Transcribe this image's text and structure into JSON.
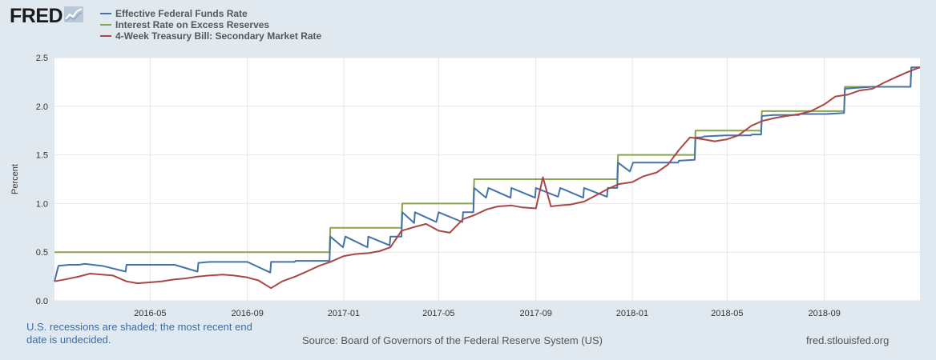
{
  "header": {
    "logo_text": "FRED",
    "logo_icon": "line-chart-icon"
  },
  "legend": [
    {
      "label": "Effective Federal Funds Rate",
      "color": "#4572a7"
    },
    {
      "label": "Interest Rate on Excess Reserves",
      "color": "#89a54e"
    },
    {
      "label": "4-Week Treasury Bill: Secondary Market Rate",
      "color": "#aa4643"
    }
  ],
  "footer": {
    "note": "U.S. recessions are shaded; the most recent end date is undecided.",
    "source": "Source: Board of Governors of the Federal Reserve System (US)",
    "url": "fred.stlouisfed.org"
  },
  "chart_data": {
    "type": "line",
    "xlabel": "",
    "ylabel": "Percent",
    "ylim": [
      0,
      2.5
    ],
    "xlim": [
      "2016-01-01",
      "2018-12-31"
    ],
    "y_ticks": [
      "0.0",
      "0.5",
      "1.0",
      "1.5",
      "2.0",
      "2.5"
    ],
    "x_ticks": [
      "2016-05",
      "2016-09",
      "2017-01",
      "2017-05",
      "2017-09",
      "2018-01",
      "2018-05",
      "2018-09"
    ],
    "grid": true,
    "legend_position": "top-left",
    "series": [
      {
        "name": "Effective Federal Funds Rate",
        "color": "#4572a7",
        "points": [
          [
            "2016-01-01",
            0.2
          ],
          [
            "2016-01-06",
            0.36
          ],
          [
            "2016-01-20",
            0.37
          ],
          [
            "2016-02-01",
            0.37
          ],
          [
            "2016-02-08",
            0.38
          ],
          [
            "2016-02-29",
            0.36
          ],
          [
            "2016-03-01",
            0.36
          ],
          [
            "2016-03-31",
            0.3
          ],
          [
            "2016-04-01",
            0.37
          ],
          [
            "2016-04-30",
            0.37
          ],
          [
            "2016-05-01",
            0.37
          ],
          [
            "2016-05-31",
            0.37
          ],
          [
            "2016-06-01",
            0.37
          ],
          [
            "2016-06-30",
            0.3
          ],
          [
            "2016-07-01",
            0.39
          ],
          [
            "2016-07-15",
            0.4
          ],
          [
            "2016-08-01",
            0.4
          ],
          [
            "2016-08-31",
            0.4
          ],
          [
            "2016-09-01",
            0.4
          ],
          [
            "2016-09-30",
            0.29
          ],
          [
            "2016-10-01",
            0.4
          ],
          [
            "2016-10-31",
            0.4
          ],
          [
            "2016-11-01",
            0.41
          ],
          [
            "2016-11-30",
            0.41
          ],
          [
            "2016-12-01",
            0.41
          ],
          [
            "2016-12-14",
            0.41
          ],
          [
            "2016-12-15",
            0.66
          ],
          [
            "2016-12-31",
            0.55
          ],
          [
            "2017-01-03",
            0.66
          ],
          [
            "2017-01-31",
            0.55
          ],
          [
            "2017-02-01",
            0.66
          ],
          [
            "2017-02-28",
            0.57
          ],
          [
            "2017-03-01",
            0.66
          ],
          [
            "2017-03-15",
            0.66
          ],
          [
            "2017-03-16",
            0.91
          ],
          [
            "2017-03-31",
            0.8
          ],
          [
            "2017-04-01",
            0.91
          ],
          [
            "2017-04-28",
            0.81
          ],
          [
            "2017-05-01",
            0.91
          ],
          [
            "2017-05-31",
            0.81
          ],
          [
            "2017-06-01",
            0.91
          ],
          [
            "2017-06-14",
            0.91
          ],
          [
            "2017-06-15",
            1.16
          ],
          [
            "2017-06-30",
            1.06
          ],
          [
            "2017-07-03",
            1.16
          ],
          [
            "2017-07-31",
            1.06
          ],
          [
            "2017-08-01",
            1.16
          ],
          [
            "2017-08-31",
            1.06
          ],
          [
            "2017-09-01",
            1.16
          ],
          [
            "2017-09-29",
            1.07
          ],
          [
            "2017-10-02",
            1.16
          ],
          [
            "2017-10-31",
            1.06
          ],
          [
            "2017-11-01",
            1.16
          ],
          [
            "2017-11-30",
            1.07
          ],
          [
            "2017-12-01",
            1.16
          ],
          [
            "2017-12-13",
            1.16
          ],
          [
            "2017-12-14",
            1.42
          ],
          [
            "2017-12-29",
            1.33
          ],
          [
            "2018-01-02",
            1.42
          ],
          [
            "2018-01-31",
            1.42
          ],
          [
            "2018-02-01",
            1.42
          ],
          [
            "2018-02-28",
            1.42
          ],
          [
            "2018-03-01",
            1.44
          ],
          [
            "2018-03-21",
            1.45
          ],
          [
            "2018-03-22",
            1.68
          ],
          [
            "2018-03-30",
            1.68
          ],
          [
            "2018-04-02",
            1.69
          ],
          [
            "2018-04-30",
            1.7
          ],
          [
            "2018-05-01",
            1.7
          ],
          [
            "2018-05-31",
            1.7
          ],
          [
            "2018-06-01",
            1.71
          ],
          [
            "2018-06-13",
            1.71
          ],
          [
            "2018-06-14",
            1.9
          ],
          [
            "2018-06-29",
            1.91
          ],
          [
            "2018-07-02",
            1.91
          ],
          [
            "2018-07-31",
            1.91
          ],
          [
            "2018-08-01",
            1.92
          ],
          [
            "2018-08-31",
            1.92
          ],
          [
            "2018-09-04",
            1.92
          ],
          [
            "2018-09-26",
            1.93
          ],
          [
            "2018-09-27",
            2.18
          ],
          [
            "2018-10-31",
            2.2
          ],
          [
            "2018-11-30",
            2.2
          ],
          [
            "2018-12-19",
            2.2
          ],
          [
            "2018-12-20",
            2.4
          ],
          [
            "2018-12-31",
            2.4
          ]
        ]
      },
      {
        "name": "Interest Rate on Excess Reserves",
        "color": "#89a54e",
        "points": [
          [
            "2016-01-01",
            0.5
          ],
          [
            "2016-12-14",
            0.5
          ],
          [
            "2016-12-15",
            0.75
          ],
          [
            "2017-03-15",
            0.75
          ],
          [
            "2017-03-16",
            1.0
          ],
          [
            "2017-06-14",
            1.0
          ],
          [
            "2017-06-15",
            1.25
          ],
          [
            "2017-12-13",
            1.25
          ],
          [
            "2017-12-14",
            1.5
          ],
          [
            "2018-03-21",
            1.5
          ],
          [
            "2018-03-22",
            1.75
          ],
          [
            "2018-06-13",
            1.75
          ],
          [
            "2018-06-14",
            1.95
          ],
          [
            "2018-09-26",
            1.95
          ],
          [
            "2018-09-27",
            2.2
          ],
          [
            "2018-12-19",
            2.2
          ],
          [
            "2018-12-20",
            2.4
          ],
          [
            "2018-12-31",
            2.4
          ]
        ]
      },
      {
        "name": "4-Week Treasury Bill: Secondary Market Rate",
        "color": "#aa4643",
        "points": [
          [
            "2016-01-01",
            0.2
          ],
          [
            "2016-01-15",
            0.22
          ],
          [
            "2016-02-01",
            0.25
          ],
          [
            "2016-02-15",
            0.28
          ],
          [
            "2016-03-01",
            0.27
          ],
          [
            "2016-03-15",
            0.26
          ],
          [
            "2016-04-01",
            0.2
          ],
          [
            "2016-04-15",
            0.18
          ],
          [
            "2016-05-01",
            0.19
          ],
          [
            "2016-05-15",
            0.2
          ],
          [
            "2016-06-01",
            0.22
          ],
          [
            "2016-06-15",
            0.23
          ],
          [
            "2016-07-01",
            0.25
          ],
          [
            "2016-07-15",
            0.26
          ],
          [
            "2016-08-01",
            0.27
          ],
          [
            "2016-08-15",
            0.26
          ],
          [
            "2016-09-01",
            0.24
          ],
          [
            "2016-09-15",
            0.21
          ],
          [
            "2016-10-01",
            0.13
          ],
          [
            "2016-10-15",
            0.2
          ],
          [
            "2016-11-01",
            0.25
          ],
          [
            "2016-11-15",
            0.3
          ],
          [
            "2016-12-01",
            0.36
          ],
          [
            "2016-12-15",
            0.4
          ],
          [
            "2017-01-01",
            0.46
          ],
          [
            "2017-01-15",
            0.48
          ],
          [
            "2017-02-01",
            0.49
          ],
          [
            "2017-02-15",
            0.51
          ],
          [
            "2017-03-01",
            0.55
          ],
          [
            "2017-03-15",
            0.72
          ],
          [
            "2017-04-01",
            0.76
          ],
          [
            "2017-04-15",
            0.79
          ],
          [
            "2017-05-01",
            0.72
          ],
          [
            "2017-05-15",
            0.7
          ],
          [
            "2017-06-01",
            0.84
          ],
          [
            "2017-06-15",
            0.88
          ],
          [
            "2017-07-01",
            0.94
          ],
          [
            "2017-07-15",
            0.97
          ],
          [
            "2017-08-01",
            0.98
          ],
          [
            "2017-08-15",
            0.96
          ],
          [
            "2017-09-01",
            0.95
          ],
          [
            "2017-09-10",
            1.27
          ],
          [
            "2017-09-20",
            0.97
          ],
          [
            "2017-10-01",
            0.98
          ],
          [
            "2017-10-15",
            0.99
          ],
          [
            "2017-11-01",
            1.02
          ],
          [
            "2017-11-15",
            1.08
          ],
          [
            "2017-12-01",
            1.15
          ],
          [
            "2017-12-15",
            1.2
          ],
          [
            "2018-01-01",
            1.22
          ],
          [
            "2018-01-15",
            1.28
          ],
          [
            "2018-02-01",
            1.32
          ],
          [
            "2018-02-15",
            1.4
          ],
          [
            "2018-03-01",
            1.55
          ],
          [
            "2018-03-15",
            1.68
          ],
          [
            "2018-04-01",
            1.66
          ],
          [
            "2018-04-15",
            1.64
          ],
          [
            "2018-05-01",
            1.66
          ],
          [
            "2018-05-15",
            1.7
          ],
          [
            "2018-06-01",
            1.8
          ],
          [
            "2018-06-15",
            1.85
          ],
          [
            "2018-07-01",
            1.88
          ],
          [
            "2018-07-15",
            1.9
          ],
          [
            "2018-08-01",
            1.92
          ],
          [
            "2018-08-15",
            1.95
          ],
          [
            "2018-09-01",
            2.02
          ],
          [
            "2018-09-15",
            2.1
          ],
          [
            "2018-10-01",
            2.12
          ],
          [
            "2018-10-15",
            2.16
          ],
          [
            "2018-11-01",
            2.18
          ],
          [
            "2018-11-15",
            2.24
          ],
          [
            "2018-12-01",
            2.3
          ],
          [
            "2018-12-15",
            2.35
          ],
          [
            "2018-12-31",
            2.4
          ]
        ]
      }
    ]
  }
}
